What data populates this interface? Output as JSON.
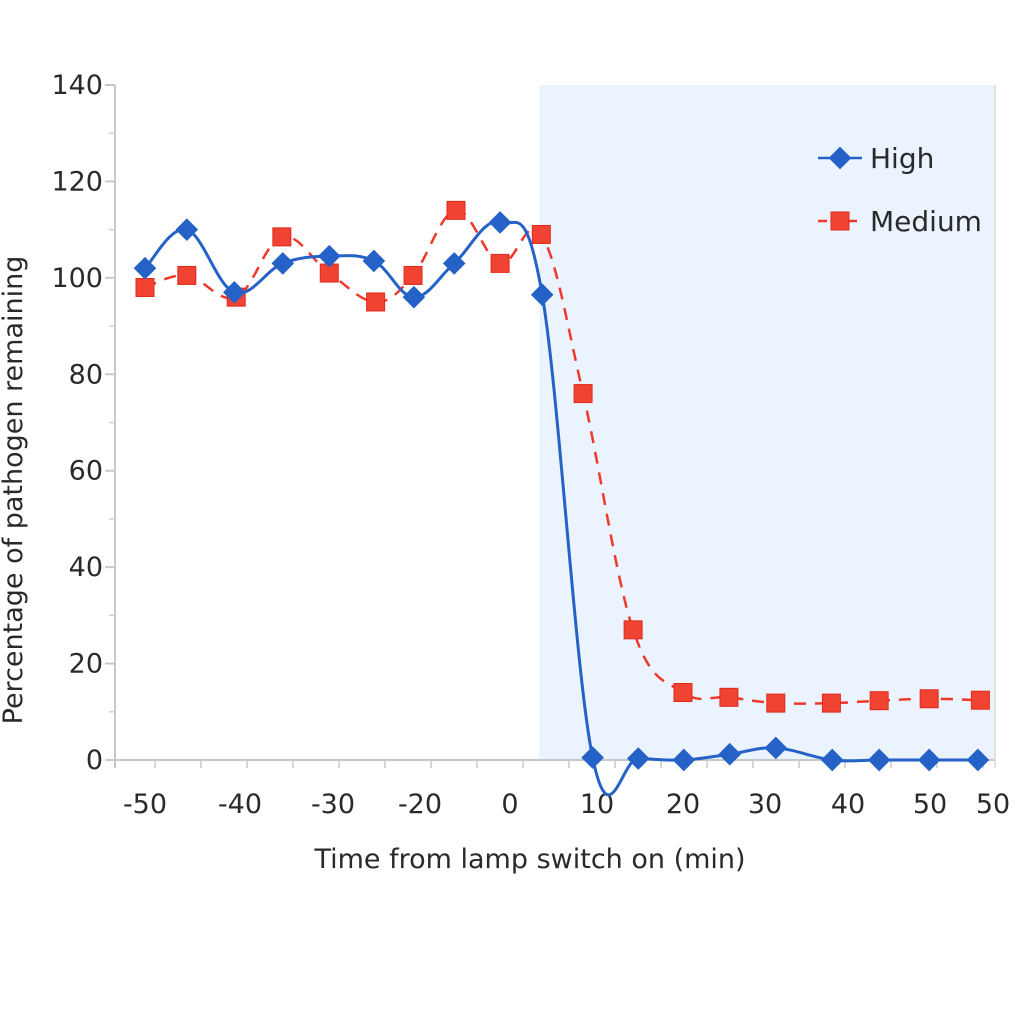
{
  "chart_data": {
    "type": "line",
    "title": "",
    "xlabel": "Time from lamp switch on (min)",
    "ylabel": "Percentage of pathogen remaining",
    "ylim": [
      0,
      140
    ],
    "yticks": [
      "0",
      "20",
      "40",
      "60",
      "80",
      "100",
      "120",
      "140"
    ],
    "xtick_labels": [
      "-50",
      "-40",
      "-30",
      "-20",
      "0",
      "10",
      "20",
      "30",
      "40",
      "50",
      "50"
    ],
    "shaded_region_start_min": 3.4,
    "shaded_color": "#eaf3fe",
    "grid": false,
    "legend_position": "top-right",
    "series": [
      {
        "name": "High",
        "color": "#2462c8",
        "marker": "diamond",
        "line": "solid-smooth",
        "x": [
          -50,
          -45.6,
          -40.6,
          -35.4,
          -30.4,
          -25.3,
          -20.7,
          -12.4,
          -2.2,
          3.7,
          9.5,
          14.8,
          20.1,
          25.7,
          31.3,
          38.1,
          43.8,
          49.9,
          55.7
        ],
        "y": [
          102,
          110,
          97,
          103,
          104.5,
          103.5,
          96,
          103,
          111.5,
          96.5,
          0.5,
          0.3,
          0,
          1.2,
          2.5,
          0,
          0,
          0,
          0
        ]
      },
      {
        "name": "Medium",
        "color": "#f0382a",
        "marker": "square",
        "line": "dashed",
        "x": [
          -50,
          -45.6,
          -40.4,
          -35.5,
          -30.4,
          -25.1,
          -20.8,
          -12.0,
          -2.2,
          3.6,
          8.4,
          14.2,
          20,
          25.6,
          31.3,
          38,
          43.8,
          49.9,
          56
        ],
        "y": [
          98,
          100.5,
          96,
          108.5,
          101,
          95,
          100.5,
          114,
          103,
          109,
          76,
          27,
          14,
          13,
          11.8,
          11.8,
          12.3,
          12.7,
          12.4
        ]
      }
    ]
  }
}
